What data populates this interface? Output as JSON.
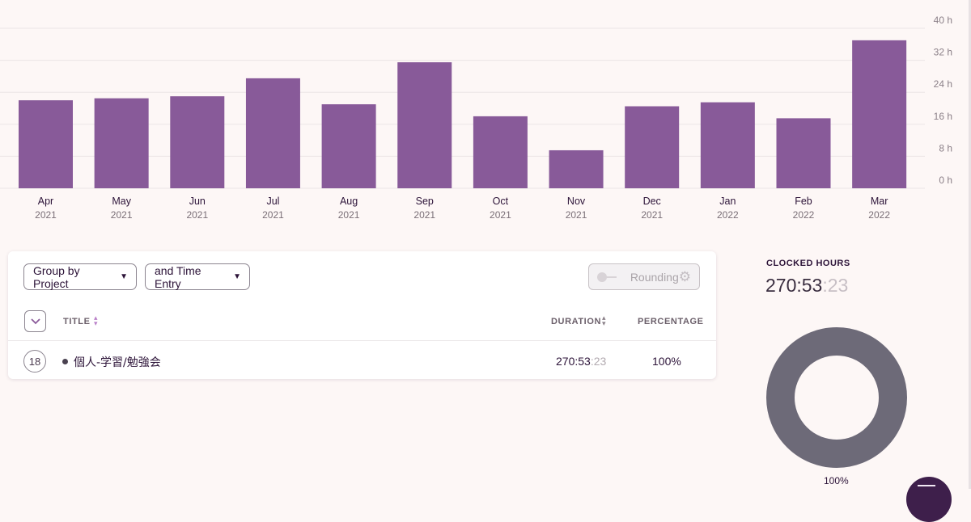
{
  "chart_data": {
    "type": "bar",
    "categories": [
      "Apr",
      "May",
      "Jun",
      "Jul",
      "Aug",
      "Sep",
      "Oct",
      "Nov",
      "Dec",
      "Jan",
      "Feb",
      "Mar"
    ],
    "years": [
      "2021",
      "2021",
      "2021",
      "2021",
      "2021",
      "2021",
      "2021",
      "2021",
      "2021",
      "2022",
      "2022",
      "2022"
    ],
    "values": [
      22,
      22.5,
      23,
      27.5,
      21,
      31.5,
      18,
      9.5,
      20.5,
      21.5,
      17.5,
      37
    ],
    "ylim": [
      0,
      40
    ],
    "yticks": [
      0,
      8,
      16,
      24,
      32,
      40
    ],
    "ytick_labels": [
      "0 h",
      "8 h",
      "16 h",
      "24 h",
      "32 h",
      "40 h"
    ],
    "grid": true,
    "bar_color": "#885a99"
  },
  "controls": {
    "group_by_label": "Group by Project",
    "and_label": "and Time Entry",
    "rounding_label": "Rounding"
  },
  "table": {
    "headers": {
      "title": "TITLE",
      "duration": "DURATION",
      "percentage": "PERCENTAGE"
    },
    "row": {
      "count": "18",
      "title": "個人-学習/勉強会",
      "duration_main": "270:53",
      "duration_seconds": ":23",
      "percentage": "100%"
    }
  },
  "summary": {
    "label": "CLOCKED HOURS",
    "value_main": "270:53",
    "value_seconds": ":23",
    "donut_percentage": "100%",
    "donut_color": "#6d6a78"
  }
}
